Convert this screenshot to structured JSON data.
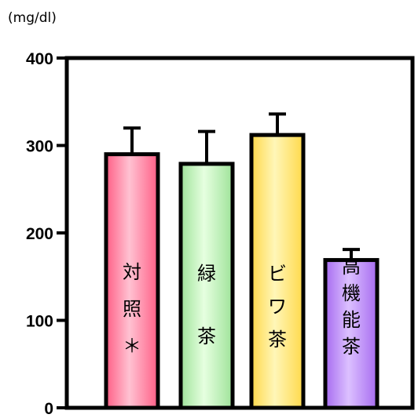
{
  "chart_data": {
    "type": "bar",
    "unit_label": "(mg/dl)",
    "ylim": [
      0,
      400
    ],
    "yticks": [
      "0",
      "100",
      "200",
      "300",
      "400"
    ],
    "xlabel": "",
    "ylabel": "",
    "categories": [
      "対照＊",
      "緑茶",
      "ビワ茶",
      "高機能茶"
    ],
    "category_label_lines": [
      [
        "対",
        "照",
        "＊"
      ],
      [
        "緑",
        "茶"
      ],
      [
        "ビ",
        "ワ",
        "茶"
      ],
      [
        "高",
        "機",
        "能",
        "茶"
      ]
    ],
    "values": [
      290,
      279,
      312,
      169
    ],
    "error": [
      30,
      37,
      24,
      12
    ],
    "colors": [
      "#ff5f86",
      "#9fe39a",
      "#ffd94a",
      "#a66bf0"
    ],
    "highlight_colors": [
      "#ffc2d2",
      "#e6ffe0",
      "#fff6b8",
      "#dcc0ff"
    ],
    "grid": false,
    "legend": "none"
  }
}
